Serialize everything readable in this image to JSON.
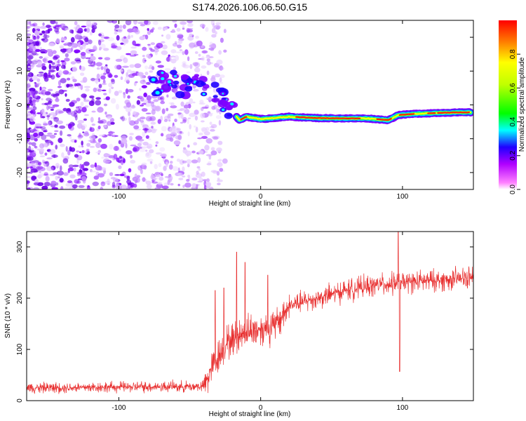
{
  "title": "S174.2026.106.06.50.G15",
  "chart_data": [
    {
      "type": "heatmap",
      "xlabel": "Height of straight line (km)",
      "ylabel": "Frequency (Hz)",
      "xlim": [
        -165,
        150
      ],
      "ylim": [
        -25,
        25
      ],
      "x_ticks": [
        -100,
        0,
        100
      ],
      "x_tick_labels": [
        "-100",
        "0",
        "100"
      ],
      "y_ticks": [
        -20,
        -10,
        0,
        10,
        20
      ],
      "y_tick_labels": [
        "-20",
        "-10",
        "0",
        "10",
        "20"
      ],
      "colorbar": {
        "label": "Normalized spectral amplitude",
        "range": [
          0,
          1
        ],
        "ticks": [
          0,
          0.2,
          0.4,
          0.6,
          0.8
        ],
        "tick_labels": [
          "0.0",
          "0.2",
          "0.4",
          "0.6",
          "0.8"
        ],
        "colors": [
          "#ffffff",
          "#ff00ff",
          "#8000ff",
          "#0000ff",
          "#00ffff",
          "#00ff00",
          "#ffff00",
          "#ff8000",
          "#ff0000"
        ]
      },
      "ridge": [
        {
          "x": -75,
          "f": 6
        },
        {
          "x": -65,
          "f": 8
        },
        {
          "x": -55,
          "f": 5
        },
        {
          "x": -45,
          "f": 7
        },
        {
          "x": -35,
          "f": 4
        },
        {
          "x": -25,
          "f": 1
        },
        {
          "x": -18,
          "f": -3
        },
        {
          "x": -15,
          "f": -4.5
        },
        {
          "x": -10,
          "f": -3.5
        },
        {
          "x": 0,
          "f": -4.2
        },
        {
          "x": 20,
          "f": -3.5
        },
        {
          "x": 40,
          "f": -3.9
        },
        {
          "x": 60,
          "f": -4
        },
        {
          "x": 75,
          "f": -4
        },
        {
          "x": 90,
          "f": -4.5
        },
        {
          "x": 97,
          "f": -3
        },
        {
          "x": 110,
          "f": -2.6
        },
        {
          "x": 130,
          "f": -2.3
        },
        {
          "x": 148,
          "f": -2.2
        }
      ]
    },
    {
      "type": "line",
      "xlabel": "Height of straight line (km)",
      "ylabel": "SNR (10 * v/v)",
      "xlim": [
        -165,
        150
      ],
      "ylim": [
        0,
        330
      ],
      "x_ticks": [
        -100,
        0,
        100
      ],
      "x_tick_labels": [
        "-100",
        "0",
        "100"
      ],
      "y_ticks": [
        0,
        100,
        200,
        300
      ],
      "y_tick_labels": [
        "0",
        "100",
        "200",
        "300"
      ],
      "series": [
        {
          "name": "SNR",
          "color": "#e83030",
          "trend": [
            {
              "x": -165,
              "y": 25
            },
            {
              "x": -40,
              "y": 28
            },
            {
              "x": -35,
              "y": 60
            },
            {
              "x": -25,
              "y": 110
            },
            {
              "x": -10,
              "y": 135
            },
            {
              "x": 10,
              "y": 145
            },
            {
              "x": 20,
              "y": 185
            },
            {
              "x": 40,
              "y": 200
            },
            {
              "x": 60,
              "y": 215
            },
            {
              "x": 80,
              "y": 225
            },
            {
              "x": 100,
              "y": 230
            },
            {
              "x": 150,
              "y": 240
            }
          ],
          "spikes": [
            {
              "x": -32,
              "y": 215
            },
            {
              "x": -26,
              "y": 220
            },
            {
              "x": -17,
              "y": 290
            },
            {
              "x": -11,
              "y": 270
            },
            {
              "x": 5,
              "y": 245
            },
            {
              "x": 97,
              "y": 330
            },
            {
              "x": 98,
              "y": 57
            }
          ]
        }
      ]
    }
  ]
}
